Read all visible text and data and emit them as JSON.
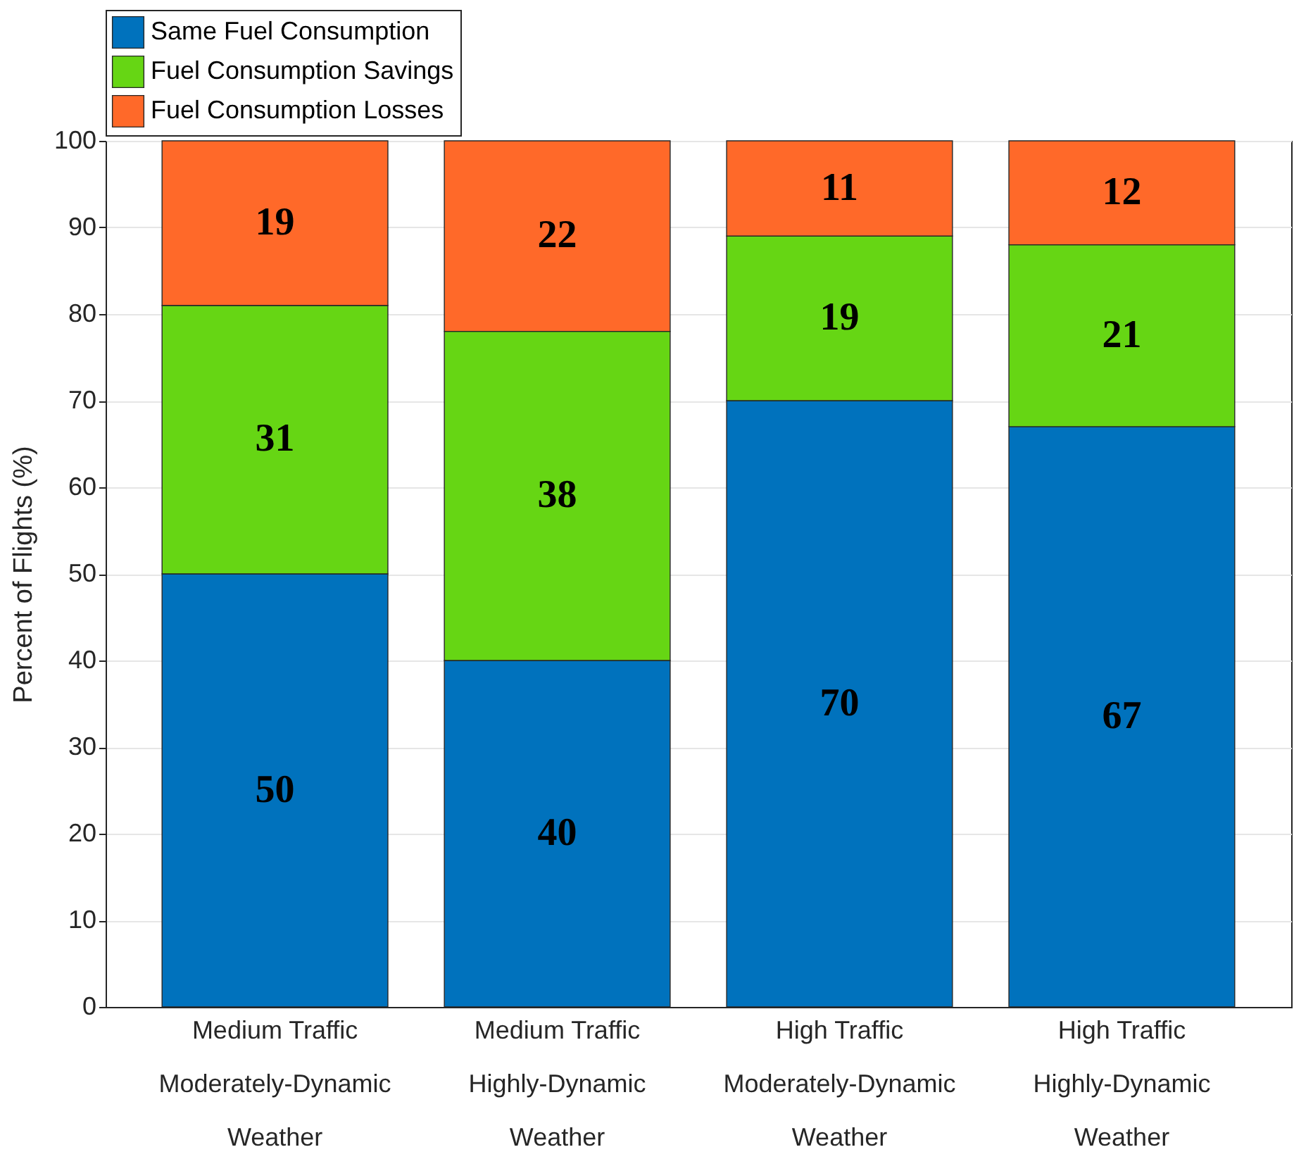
{
  "chart_data": {
    "type": "bar",
    "stacked": true,
    "ylabel": "Percent of Flights (%)",
    "categories": [
      "Medium Traffic\nModerately-Dynamic\nWeather",
      "Medium Traffic\nHighly-Dynamic\nWeather",
      "High Traffic\nModerately-Dynamic\nWeather",
      "High Traffic\nHighly-Dynamic\nWeather"
    ],
    "series": [
      {
        "name": "Same Fuel Consumption",
        "color": "#0072bd",
        "values": [
          50,
          40,
          70,
          67
        ]
      },
      {
        "name": "Fuel Consumption Savings",
        "color": "#66d614",
        "values": [
          31,
          38,
          19,
          21
        ]
      },
      {
        "name": "Fuel Consumption Losses",
        "color": "#ff6929",
        "values": [
          19,
          22,
          11,
          12
        ]
      }
    ],
    "ylim": [
      0,
      100
    ],
    "yticks": [
      0,
      10,
      20,
      30,
      40,
      50,
      60,
      70,
      80,
      90,
      100
    ],
    "grid": "y",
    "legend": "top",
    "data_labels": true
  }
}
